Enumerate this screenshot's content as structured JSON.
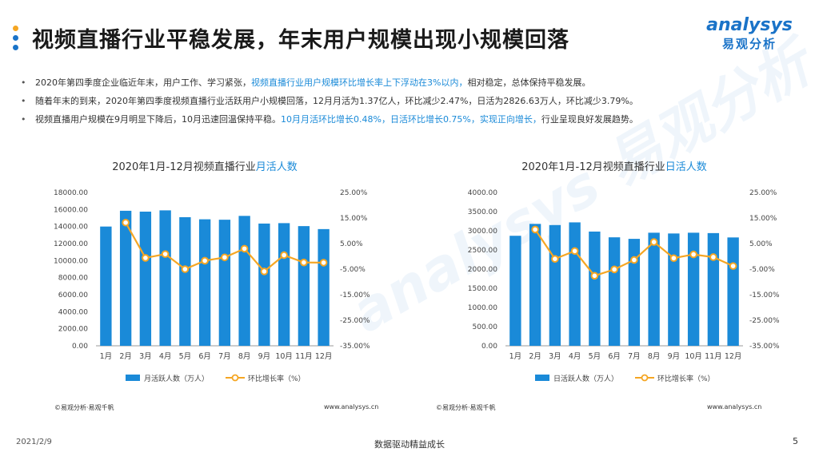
{
  "header": {
    "title": "视频直播行业平稳发展，年末用户规模出现小规模回落",
    "logo_text": "analysys",
    "logo_cn": "易观分析",
    "dot_colors": [
      "#f5a623",
      "#1a73c8",
      "#1a73c8"
    ]
  },
  "bullets": [
    [
      {
        "t": "2020年第四季度企业临近年末，用户工作、学习紧张，",
        "hl": false
      },
      {
        "t": "视频直播行业用户规模环比增长率上下浮动在3%以内，",
        "hl": true
      },
      {
        "t": "相对稳定，总体保持平稳发展。",
        "hl": false
      }
    ],
    [
      {
        "t": "随着年末的到来，2020年第四季度视频直播行业活跃用户小规模回落，12月月活为1.37亿人，环比减少2.47%，日活为2826.63万人，环比减少3.79%。",
        "hl": false
      }
    ],
    [
      {
        "t": "视频直播用户规模在9月明显下降后，10月迅速回温保持平稳。",
        "hl": false
      },
      {
        "t": "10月月活环比增长0.48%，日活环比增长0.75%，实现正向增长，",
        "hl": true
      },
      {
        "t": "行业呈现良好发展趋势。",
        "hl": false
      }
    ]
  ],
  "watermark": "analysys 易观分析",
  "footer": {
    "date": "2021/2/9",
    "slogan": "数据驱动精益成长",
    "page": "5"
  },
  "chart_data": [
    {
      "type": "bar",
      "title_prefix": "2020年1月-12月视频直播行业",
      "title_highlight": "月活人数",
      "categories": [
        "1月",
        "2月",
        "3月",
        "4月",
        "5月",
        "6月",
        "7月",
        "8月",
        "9月",
        "10月",
        "11月",
        "12月"
      ],
      "series": [
        {
          "name": "月活跃人数（万人）",
          "type": "bar",
          "axis": "left",
          "color": "#1a8ad8",
          "values": [
            14000,
            15850,
            15750,
            15900,
            15100,
            14850,
            14800,
            15250,
            14350,
            14400,
            14050,
            13700
          ]
        },
        {
          "name": "环比增长率（%）",
          "type": "line",
          "axis": "right",
          "color": "#f5a623",
          "values": [
            null,
            13.2,
            -0.6,
            0.9,
            -5.0,
            -1.7,
            -0.4,
            3.0,
            -5.9,
            0.48,
            -2.4,
            -2.47
          ]
        }
      ],
      "y_left": {
        "min": 0,
        "max": 18000,
        "ticks": [
          "0.00",
          "2000.00",
          "4000.00",
          "6000.00",
          "8000.00",
          "10000.00",
          "12000.00",
          "14000.00",
          "16000.00",
          "18000.00"
        ]
      },
      "y_right": {
        "min": -35,
        "max": 25,
        "ticks": [
          "-35.00%",
          "-25.00%",
          "-15.00%",
          "-5.00%",
          "5.00%",
          "15.00%",
          "25.00%"
        ]
      },
      "legend_position": "bottom",
      "source": "©易观分析·易观千帆",
      "url": "www.analysys.cn"
    },
    {
      "type": "bar",
      "title_prefix": "2020年1月-12月视频直播行业",
      "title_highlight": "日活人数",
      "categories": [
        "1月",
        "2月",
        "3月",
        "4月",
        "5月",
        "6月",
        "7月",
        "8月",
        "9月",
        "10月",
        "11月",
        "12月"
      ],
      "series": [
        {
          "name": "日活跃人数（万人）",
          "type": "bar",
          "axis": "left",
          "color": "#1a8ad8",
          "values": [
            2870,
            3180,
            3150,
            3220,
            2980,
            2830,
            2790,
            2950,
            2930,
            2950,
            2940,
            2826.63
          ]
        },
        {
          "name": "环比增长率（%）",
          "type": "line",
          "axis": "right",
          "color": "#f5a623",
          "values": [
            null,
            10.5,
            -1.0,
            2.1,
            -7.6,
            -5.1,
            -1.4,
            5.6,
            -0.7,
            0.75,
            -0.3,
            -3.79
          ]
        }
      ],
      "y_left": {
        "min": 0,
        "max": 4000,
        "ticks": [
          "0.00",
          "500.00",
          "1000.00",
          "1500.00",
          "2000.00",
          "2500.00",
          "3000.00",
          "3500.00",
          "4000.00"
        ]
      },
      "y_right": {
        "min": -35,
        "max": 25,
        "ticks": [
          "-35.00%",
          "-25.00%",
          "-15.00%",
          "-5.00%",
          "5.00%",
          "15.00%",
          "25.00%"
        ]
      },
      "legend_position": "bottom",
      "source": "©易观分析·易观千帆",
      "url": "www.analysys.cn"
    }
  ]
}
